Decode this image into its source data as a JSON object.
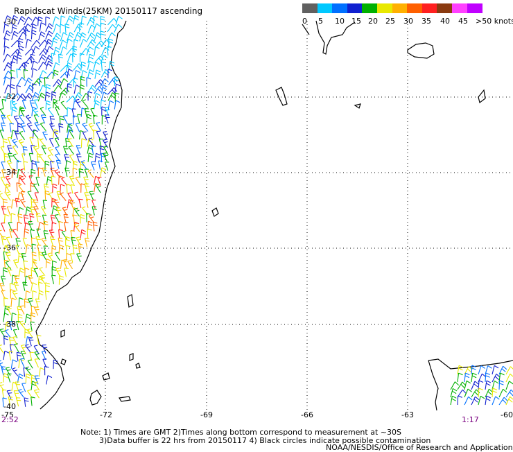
{
  "title": "Rapidscat Winds(25KM) 20150117 ascending",
  "legend": {
    "colors": [
      "#606060",
      "#00c8ff",
      "#0070ff",
      "#1020d0",
      "#00b000",
      "#e8e800",
      "#ffb000",
      "#ff6000",
      "#ff2020",
      "#8a3a10",
      "#ff40ff",
      "#c000ff"
    ],
    "labels": [
      "0",
      "5",
      "10",
      "15",
      "20",
      "25",
      "30",
      "35",
      "40",
      "45",
      ">50 knots"
    ]
  },
  "axes": {
    "lat_labels": [
      "-30",
      "-32",
      "-34",
      "-36",
      "-38",
      "-40"
    ],
    "lon_labels": [
      "-75",
      "-72",
      "-69",
      "-66",
      "-63",
      "-60"
    ]
  },
  "times": {
    "left": "2:52",
    "right": "1:17"
  },
  "notes": {
    "line1": "Note: 1) Times are GMT 2)Times along bottom correspond to measurement at ~30S",
    "line2": "3)Data buffer is 22 hrs from 20150117 4) Black circles indicate possible contamination",
    "line3": "NOAA/NESDIS/Office of Research and Applications"
  }
}
